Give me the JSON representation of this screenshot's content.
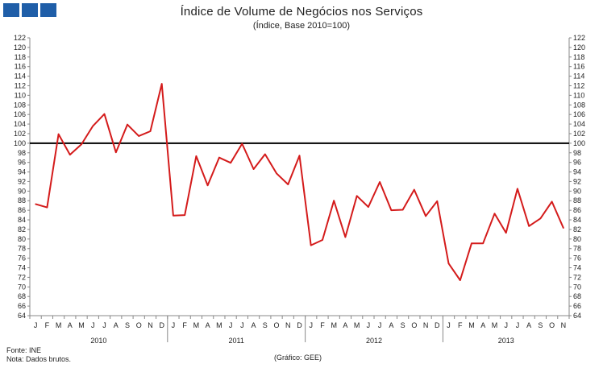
{
  "header": {
    "logo_name": "gee-logo",
    "accent_color": "#1f5ea8"
  },
  "chart_data": {
    "type": "line",
    "title": "Índice de Volume de Negócios nos Serviços",
    "subtitle": "(Índice, Base 2010=100)",
    "xlabel": "",
    "ylabel": "",
    "ylim": [
      64,
      122
    ],
    "yticks": [
      64,
      66,
      68,
      70,
      72,
      74,
      76,
      78,
      80,
      82,
      84,
      86,
      88,
      90,
      92,
      94,
      96,
      98,
      100,
      102,
      104,
      106,
      108,
      110,
      112,
      114,
      116,
      118,
      120,
      122
    ],
    "grid": false,
    "reference_line": {
      "value": 100,
      "color": "#000000"
    },
    "line_color": "#d41b1b",
    "month_labels": [
      "J",
      "F",
      "M",
      "A",
      "M",
      "J",
      "J",
      "A",
      "S",
      "O",
      "N",
      "D",
      "J",
      "F",
      "M",
      "A",
      "M",
      "J",
      "J",
      "A",
      "S",
      "O",
      "N",
      "D",
      "J",
      "F",
      "M",
      "A",
      "M",
      "J",
      "J",
      "A",
      "S",
      "O",
      "N",
      "D",
      "J",
      "F",
      "M",
      "A",
      "M",
      "J",
      "J",
      "A",
      "S",
      "O",
      "N"
    ],
    "years": [
      {
        "label": "2010",
        "months": 12
      },
      {
        "label": "2011",
        "months": 12
      },
      {
        "label": "2012",
        "months": 12
      },
      {
        "label": "2013",
        "months": 11
      }
    ],
    "series": [
      {
        "name": "Índice de Volume de Negócios nos Serviços",
        "values": [
          87.3,
          86.6,
          101.9,
          97.6,
          99.8,
          103.6,
          106.1,
          98.1,
          103.9,
          101.5,
          102.5,
          112.4,
          84.9,
          85.0,
          97.3,
          91.2,
          97.0,
          95.9,
          99.9,
          94.6,
          97.7,
          93.7,
          91.4,
          97.4,
          78.7,
          79.8,
          88.0,
          80.4,
          89.0,
          86.7,
          91.9,
          86.0,
          86.1,
          90.3,
          84.8,
          87.9,
          74.9,
          71.4,
          79.1,
          79.1,
          85.3,
          81.3,
          90.5,
          82.7,
          84.3,
          87.8,
          82.3
        ]
      }
    ]
  },
  "footer": {
    "source": "Fonte: INE",
    "note": "Nota: Dados brutos.",
    "credit": "(Gráfico: GEE)"
  }
}
